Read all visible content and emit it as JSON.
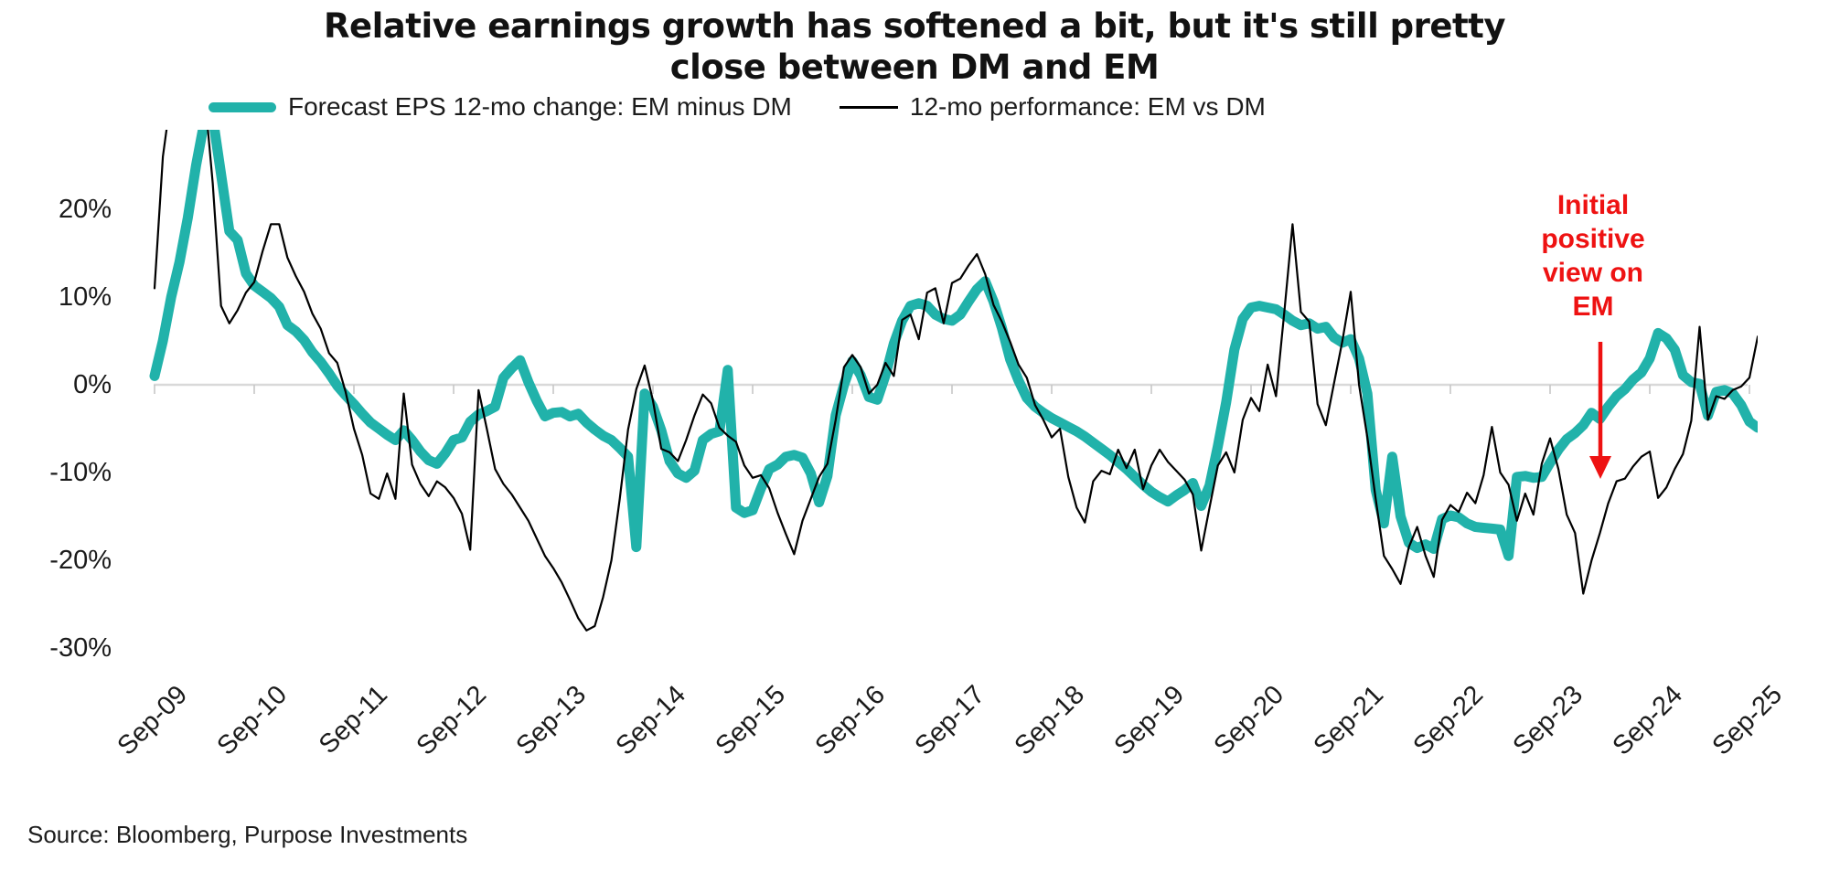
{
  "title": {
    "line1": "Relative earnings growth has softened a bit, but it's still pretty",
    "line2": "close between DM and EM"
  },
  "legend": {
    "items": [
      {
        "label": "Forecast EPS 12-mo change: EM minus DM",
        "color": "#21b2aa",
        "swatch": "thick-line"
      },
      {
        "label": "12-mo performance: EM vs DM",
        "color": "#000000",
        "swatch": "thin-line"
      }
    ]
  },
  "annotation": {
    "lines": [
      "Initial",
      "positive",
      "view on",
      "EM"
    ],
    "color": "#ee1212",
    "arrow": "down"
  },
  "source": {
    "text": "Source: Bloomberg, Purpose Investments"
  },
  "chart_data": {
    "type": "line",
    "title": "Relative earnings growth has softened a bit, but it's still pretty close between DM and EM",
    "x_unit": "monthly",
    "x_start": "Sep-2009",
    "x_end": "Oct-2025",
    "xtick_labels": [
      "Sep-09",
      "Sep-10",
      "Sep-11",
      "Sep-12",
      "Sep-13",
      "Sep-14",
      "Sep-15",
      "Sep-16",
      "Sep-17",
      "Sep-18",
      "Sep-19",
      "Sep-20",
      "Sep-21",
      "Sep-22",
      "Sep-23",
      "Sep-24",
      "Sep-25"
    ],
    "ytick_values": [
      20,
      10,
      0,
      -10,
      -20,
      -30
    ],
    "ytick_labels": [
      "20%",
      "10%",
      "0%",
      "-10%",
      "-20%",
      "-30%"
    ],
    "ylim": [
      -30,
      29
    ],
    "grid": "zero-line-only",
    "legend_position": "top",
    "series": [
      {
        "name": "Forecast EPS 12-mo change: EM minus DM",
        "color": "#21b2aa",
        "stroke_width": 11,
        "values": [
          1,
          5,
          10,
          14,
          19,
          25,
          30,
          30.5,
          24,
          17.5,
          16.5,
          12.7,
          11.3,
          10.6,
          9.9,
          8.9,
          6.8,
          6.1,
          5.1,
          3.7,
          2.6,
          1.3,
          -0.1,
          -1.2,
          -2.2,
          -3.3,
          -4.3,
          -5,
          -5.7,
          -6.3,
          -5.2,
          -6.3,
          -7.6,
          -8.6,
          -9,
          -7.8,
          -6.3,
          -6,
          -4.2,
          -3.4,
          -3,
          -2.5,
          0.8,
          1.9,
          2.8,
          0.3,
          -1.8,
          -3.6,
          -3.2,
          -3.1,
          -3.6,
          -3.3,
          -4.3,
          -5.1,
          -5.8,
          -6.3,
          -7.2,
          -8.2,
          -18.5,
          -1,
          -2.5,
          -5.2,
          -8.7,
          -10.1,
          -10.6,
          -9.8,
          -6.3,
          -5.6,
          -5.3,
          1.7,
          -14,
          -14.6,
          -14.3,
          -11.8,
          -9.6,
          -9.1,
          -8.2,
          -8,
          -8.3,
          -10.1,
          -13.4,
          -10.4,
          -3.5,
          0,
          2.7,
          1.1,
          -1.4,
          -1.7,
          1.1,
          4.7,
          7.3,
          9,
          9.3,
          9,
          8,
          7.5,
          7.3,
          8,
          9.5,
          10.9,
          11.8,
          9.5,
          6.5,
          2.9,
          0.5,
          -1.5,
          -2.5,
          -3.2,
          -3.8,
          -4.3,
          -4.8,
          -5.3,
          -5.9,
          -6.6,
          -7.3,
          -8,
          -8.8,
          -9.6,
          -10.5,
          -11.4,
          -12.2,
          -12.8,
          -13.3,
          -12.6,
          -12,
          -11.2,
          -13.8,
          -11.5,
          -7,
          -2,
          4,
          7.5,
          8.8,
          9,
          8.8,
          8.6,
          8,
          7.3,
          6.8,
          7,
          6.4,
          6.6,
          5.4,
          4.8,
          5.2,
          3,
          -1,
          -12,
          -15.8,
          -8.2,
          -15,
          -18,
          -18.6,
          -18.2,
          -18.7,
          -15.3,
          -14.9,
          -15.1,
          -15.8,
          -16.2,
          -16.3,
          -16.4,
          -16.5,
          -19.5,
          -10.5,
          -10.4,
          -10.6,
          -10.5,
          -8.9,
          -7.4,
          -6.2,
          -5.5,
          -4.6,
          -3.2,
          -3.9,
          -2.5,
          -1.3,
          -0.5,
          0.6,
          1.4,
          3,
          5.9,
          5.3,
          4,
          1.1,
          0.3,
          0.1,
          -3.5,
          -0.8,
          -0.6,
          -1,
          -2.3,
          -4.2,
          -4.9
        ]
      },
      {
        "name": "12-mo performance: EM vs DM",
        "color": "#000000",
        "stroke_width": 2.2,
        "values": [
          11,
          26,
          33,
          34,
          35,
          34.5,
          33.5,
          23,
          9,
          7,
          8.5,
          10.5,
          11.7,
          15.2,
          18.3,
          18.3,
          14.5,
          12.4,
          10.6,
          8.1,
          6.4,
          3.6,
          2.5,
          -0.8,
          -5,
          -8,
          -12.4,
          -13,
          -10.1,
          -13,
          -1,
          -9.1,
          -11.3,
          -12.7,
          -11,
          -11.7,
          -12.9,
          -14.7,
          -18.8,
          -0.6,
          -5,
          -9.6,
          -11.3,
          -12.5,
          -14,
          -15.5,
          -17.5,
          -19.5,
          -20.9,
          -22.5,
          -24.5,
          -26.6,
          -28,
          -27.5,
          -24.2,
          -20,
          -13,
          -5.1,
          -0.5,
          2.2,
          -1.8,
          -7.3,
          -7.7,
          -8.7,
          -6.3,
          -3.5,
          -1.1,
          -2.1,
          -4.9,
          -5.8,
          -6.5,
          -9.2,
          -10.6,
          -10.3,
          -11.8,
          -14.6,
          -17,
          -19.3,
          -15.5,
          -13,
          -10.5,
          -9,
          -4,
          2,
          3.4,
          2,
          -1,
          0,
          2.5,
          1,
          7.4,
          8,
          5.2,
          10.5,
          11,
          7,
          11.6,
          12.1,
          13.6,
          14.9,
          12.6,
          9.1,
          7.2,
          4.9,
          2.3,
          0.8,
          -2.3,
          -4,
          -6,
          -5,
          -10.5,
          -14,
          -15.7,
          -11,
          -9.8,
          -10.2,
          -7.4,
          -9.5,
          -7.4,
          -11.9,
          -9.2,
          -7.4,
          -8.8,
          -9.8,
          -10.8,
          -12.5,
          -18.9,
          -14,
          -9.2,
          -7.7,
          -10,
          -4,
          -1.5,
          -3,
          2.3,
          -1.3,
          8.2,
          18.3,
          8.3,
          7.2,
          -2.2,
          -4.6,
          0.2,
          5,
          10.6,
          0,
          -6,
          -13,
          -19.5,
          -21,
          -22.7,
          -18.5,
          -16.2,
          -19.5,
          -21.9,
          -15.4,
          -13.7,
          -14.5,
          -12.3,
          -13.5,
          -10.3,
          -4.8,
          -10,
          -11.4,
          -15.5,
          -12.4,
          -14.8,
          -9,
          -6.1,
          -9.6,
          -14.8,
          -16.9,
          -23.8,
          -20,
          -16.9,
          -13.5,
          -11,
          -10.7,
          -9.3,
          -8.2,
          -7.6,
          -12.9,
          -11.7,
          -9.6,
          -7.9,
          -4.1,
          6.6,
          -4,
          -1.3,
          -1.6,
          -0.6,
          -0.2,
          0.8,
          5.5
        ]
      }
    ]
  }
}
